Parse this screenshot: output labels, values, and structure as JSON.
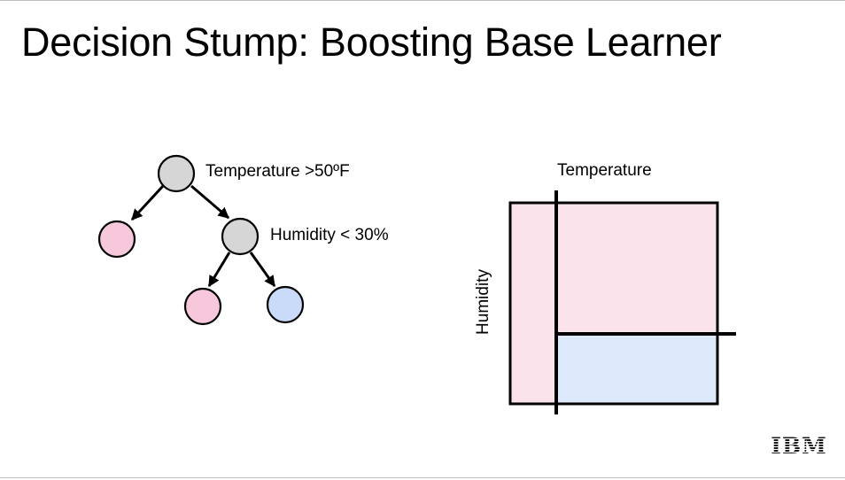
{
  "title": "Decision Stump: Boosting Base Learner",
  "colors": {
    "split_node": "#d6d6d6",
    "leaf_pink": "#f7c8dc",
    "leaf_blue": "#c9dbf8",
    "region_pink": "#fbe3ec",
    "region_blue": "#dce9fb",
    "line": "#000000"
  },
  "tree": {
    "root_label": "Temperature >50ºF",
    "child_label": "Humidity < 30%"
  },
  "feature_space": {
    "x_axis_label": "Temperature",
    "y_axis_label": "Humidity"
  },
  "logo": {
    "text": "IBM"
  }
}
